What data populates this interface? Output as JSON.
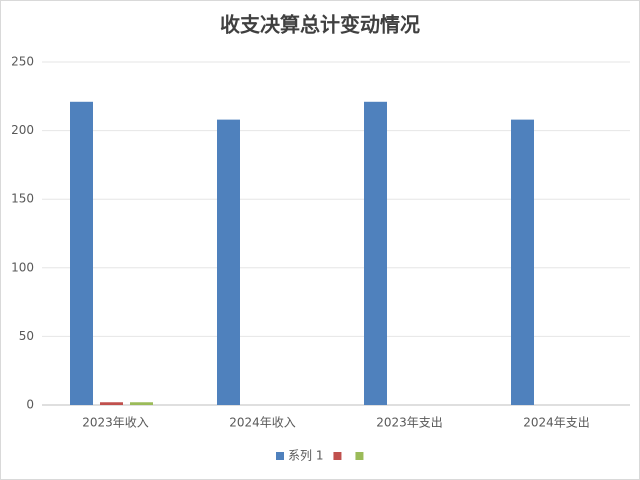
{
  "chart_data": {
    "type": "bar",
    "title": "收支决算总计变动情况",
    "categories": [
      "2023年收入",
      "2024年收入",
      "2023年支出",
      "2024年支出"
    ],
    "series": [
      {
        "name": "系列 1",
        "color": "#4f81bd",
        "values": [
          221,
          208,
          221,
          208
        ]
      },
      {
        "name": null,
        "color": "#c0504d",
        "values": [
          2,
          null,
          null,
          null
        ]
      },
      {
        "name": null,
        "color": "#9bbb59",
        "values": [
          2,
          null,
          null,
          null
        ]
      }
    ],
    "ylim": [
      0,
      250
    ],
    "yticks": [
      0,
      50,
      100,
      150,
      200,
      250
    ],
    "grid": true,
    "legend": "bottom"
  }
}
